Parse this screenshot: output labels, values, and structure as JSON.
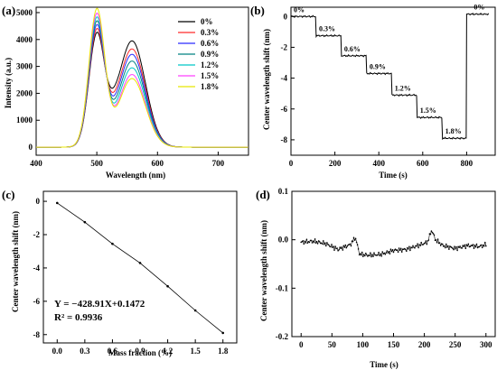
{
  "chart_data": [
    {
      "id": "a",
      "panel_label": "(a)",
      "type": "line",
      "xlabel": "Wavelength (nm)",
      "ylabel": "Intensity (a.u.)",
      "xlim": [
        400,
        750
      ],
      "ylim": [
        -300,
        5200
      ],
      "xticks": [
        400,
        500,
        600,
        700
      ],
      "yticks": [
        0,
        1000,
        2000,
        3000,
        4000,
        5000
      ],
      "legend_position": "top-right",
      "peak1_x": 500,
      "valley_x": 530,
      "peak2_x": 558,
      "series": [
        {
          "name": "0%",
          "color": "#000000",
          "peak1": 4150,
          "valley": 2300,
          "peak2": 3950
        },
        {
          "name": "0.3%",
          "color": "#ff2a2a",
          "peak1": 4300,
          "valley": 2100,
          "peak2": 3650
        },
        {
          "name": "0.6%",
          "color": "#2a2aff",
          "peak1": 4450,
          "valley": 1950,
          "peak2": 3450
        },
        {
          "name": "0.9%",
          "color": "#008080",
          "peak1": 4600,
          "valley": 1800,
          "peak2": 3200
        },
        {
          "name": "1.2%",
          "color": "#00c8c8",
          "peak1": 4750,
          "valley": 1650,
          "peak2": 2950
        },
        {
          "name": "1.5%",
          "color": "#ff40ff",
          "peak1": 4900,
          "valley": 1500,
          "peak2": 2700
        },
        {
          "name": "1.8%",
          "color": "#e8e800",
          "peak1": 5080,
          "valley": 1350,
          "peak2": 2550
        }
      ]
    },
    {
      "id": "b",
      "panel_label": "(b)",
      "type": "line",
      "xlabel": "Time (s)",
      "ylabel": "Center wavelength shift (nm)",
      "xlim": [
        0,
        930
      ],
      "ylim": [
        -9,
        0.6
      ],
      "xticks": [
        0,
        200,
        400,
        600,
        800
      ],
      "yticks": [
        0,
        -2,
        -4,
        -6,
        -8
      ],
      "steps": [
        {
          "label": "0%",
          "t_start": 0,
          "t_end": 115,
          "value": 0.0
        },
        {
          "label": "0.3%",
          "t_start": 115,
          "t_end": 230,
          "value": -1.25
        },
        {
          "label": "0.6%",
          "t_start": 230,
          "t_end": 345,
          "value": -2.55
        },
        {
          "label": "0.9%",
          "t_start": 345,
          "t_end": 460,
          "value": -3.7
        },
        {
          "label": "1.2%",
          "t_start": 460,
          "t_end": 575,
          "value": -5.1
        },
        {
          "label": "1.5%",
          "t_start": 575,
          "t_end": 690,
          "value": -6.55
        },
        {
          "label": "1.8%",
          "t_start": 690,
          "t_end": 800,
          "value": -7.9
        },
        {
          "label": "0%",
          "t_start": 800,
          "t_end": 900,
          "value": 0.15
        }
      ]
    },
    {
      "id": "c",
      "panel_label": "(c)",
      "type": "line",
      "xlabel": "Mass fraction (%)",
      "ylabel": "Center wavelength shift (nm)",
      "xlim": [
        -0.15,
        1.95
      ],
      "ylim": [
        -8.5,
        0.6
      ],
      "xticks": [
        0.0,
        0.3,
        0.6,
        0.9,
        1.2,
        1.5,
        1.8
      ],
      "xtick_labels": [
        "0.0",
        "0.3",
        "0.6",
        "0.9",
        "1.2",
        "1.5",
        "1.8"
      ],
      "yticks": [
        0,
        -2,
        -4,
        -6,
        -8
      ],
      "x": [
        0.0,
        0.3,
        0.6,
        0.9,
        1.2,
        1.5,
        1.8
      ],
      "y": [
        -0.1,
        -1.25,
        -2.55,
        -3.7,
        -5.1,
        -6.55,
        -7.9
      ],
      "fit_line": "Y = −428.91X+0.1472",
      "r_squared": "R² = 0.9936"
    },
    {
      "id": "d",
      "panel_label": "(d)",
      "type": "scatter",
      "xlabel": "Time (s)",
      "ylabel": "Center wavelength shift (nm)",
      "xlim": [
        -15,
        315
      ],
      "ylim": [
        -0.2,
        0.1
      ],
      "xticks": [
        0,
        50,
        100,
        150,
        200,
        250,
        300
      ],
      "yticks": [
        0.1,
        0.0,
        -0.1,
        -0.2
      ],
      "ytick_labels": [
        "0.1",
        "0.0",
        "-0.1",
        "-0.2"
      ],
      "trend": [
        [
          0,
          -0.005
        ],
        [
          20,
          -0.003
        ],
        [
          40,
          -0.008
        ],
        [
          60,
          -0.02
        ],
        [
          80,
          -0.01
        ],
        [
          88,
          0.005
        ],
        [
          95,
          -0.03
        ],
        [
          110,
          -0.032
        ],
        [
          130,
          -0.03
        ],
        [
          150,
          -0.022
        ],
        [
          170,
          -0.02
        ],
        [
          190,
          -0.012
        ],
        [
          205,
          -0.005
        ],
        [
          212,
          0.02
        ],
        [
          218,
          0.0
        ],
        [
          230,
          -0.012
        ],
        [
          250,
          -0.018
        ],
        [
          270,
          -0.012
        ],
        [
          290,
          -0.014
        ],
        [
          300,
          -0.01
        ]
      ]
    }
  ]
}
